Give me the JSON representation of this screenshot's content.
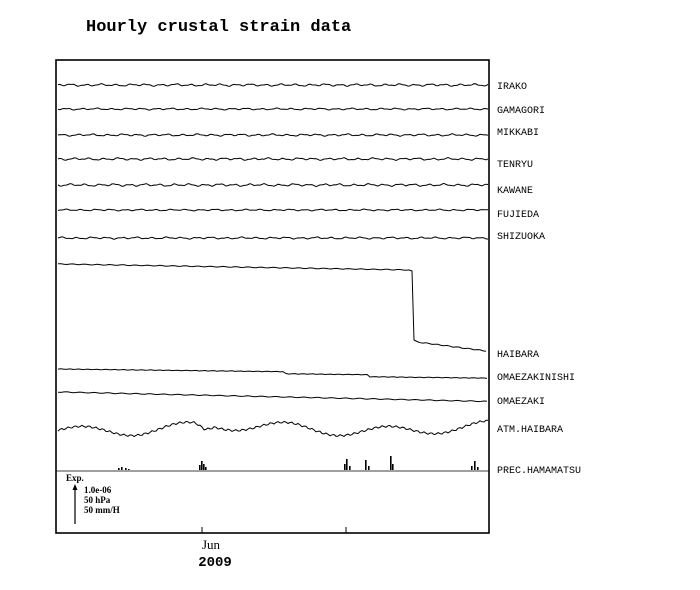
{
  "chart_data": {
    "type": "line",
    "title": "Hourly crustal strain data",
    "xlabel": "",
    "ylabel": "",
    "x_ticks": [
      {
        "label": "Jun",
        "year": "2009"
      }
    ],
    "scale_legend": {
      "heading": "Exp.",
      "lines": [
        "1.0e-06",
        "50 hPa",
        "50 mm/H"
      ]
    },
    "series": [
      {
        "name": "IRAKO",
        "kind": "noise",
        "amp": 1.4
      },
      {
        "name": "GAMAGORI",
        "kind": "noise",
        "amp": 1.1
      },
      {
        "name": "MIKKABI",
        "kind": "noise",
        "amp": 1.3
      },
      {
        "name": "TENRYU",
        "kind": "noise",
        "amp": 1.4
      },
      {
        "name": "KAWANE",
        "kind": "noise",
        "amp": 1.5
      },
      {
        "name": "FUJIEDA",
        "kind": "noise",
        "amp": 1.0
      },
      {
        "name": "SHIZUOKA",
        "kind": "noise",
        "amp": 1.2
      },
      {
        "name": "HAIBARA",
        "kind": "step"
      },
      {
        "name": "OMAEZAKINISHI",
        "kind": "steps"
      },
      {
        "name": "OMAEZAKI",
        "kind": "drift"
      },
      {
        "name": "ATM.HAIBARA",
        "kind": "pressure"
      },
      {
        "name": "PREC.HAMAMATSU",
        "kind": "precip"
      }
    ]
  }
}
